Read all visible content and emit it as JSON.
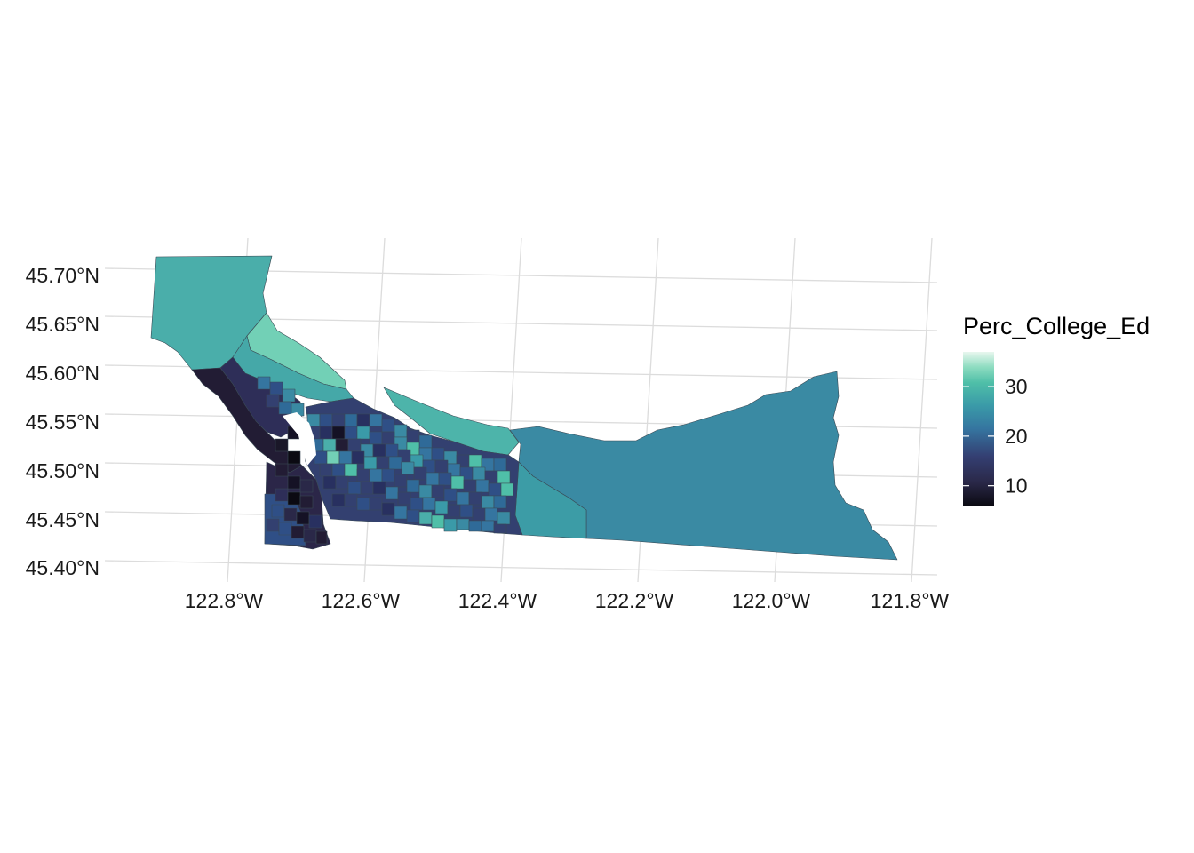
{
  "map": {
    "lat_labels": [
      "45.70°N",
      "45.65°N",
      "45.60°N",
      "45.55°N",
      "45.50°N",
      "45.45°N",
      "45.40°N"
    ],
    "lon_labels": [
      "122.8°W",
      "122.6°W",
      "122.4°W",
      "122.2°W",
      "122.0°W",
      "121.8°W"
    ]
  },
  "legend": {
    "title": "Perc_College_Ed",
    "ticks": [
      "30",
      "20",
      "10"
    ],
    "tick_values": [
      30,
      20,
      10
    ],
    "range": [
      6,
      37
    ],
    "colors": [
      "#0b0a12",
      "#2a2848",
      "#343f72",
      "#3575a0",
      "#3a9aa8",
      "#4fbfa8",
      "#8ddcc0",
      "#e8f7ee"
    ]
  }
}
